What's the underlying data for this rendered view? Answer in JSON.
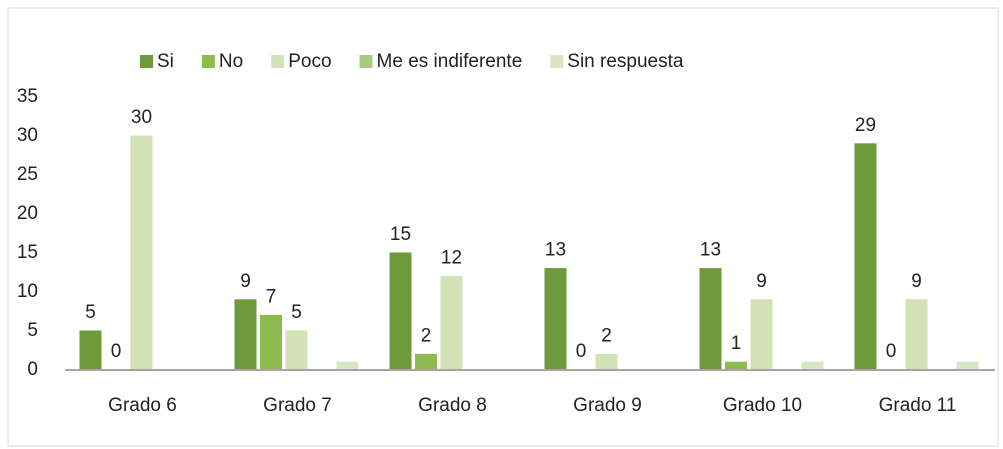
{
  "chart_data": {
    "type": "bar",
    "categories": [
      "Grado 6",
      "Grado 7",
      "Grado 8",
      "Grado 9",
      "Grado 10",
      "Grado 11"
    ],
    "series": [
      {
        "name": "Si",
        "color": "#6e9a3c",
        "values": [
          5,
          9,
          15,
          13,
          13,
          29
        ],
        "data_labels": true
      },
      {
        "name": "No",
        "color": "#8dbb4f",
        "values": [
          0,
          7,
          2,
          0,
          1,
          0
        ],
        "data_labels": true
      },
      {
        "name": "Poco",
        "color": "#d3e2b4",
        "values": [
          30,
          5,
          12,
          2,
          9,
          9
        ],
        "data_labels": true
      },
      {
        "name": "Me es indiferente",
        "color": "#a9cc7c",
        "values": [
          0,
          0,
          0,
          0,
          0,
          0
        ],
        "data_labels": false
      },
      {
        "name": "Sin respuesta",
        "color": "#d8e5c2",
        "values": [
          0,
          1,
          0,
          0,
          1,
          1
        ],
        "data_labels": false
      }
    ],
    "ylim": [
      0,
      35
    ],
    "yticks": [
      0,
      5,
      10,
      15,
      20,
      25,
      30,
      35
    ],
    "grid": false,
    "legend": "top"
  }
}
